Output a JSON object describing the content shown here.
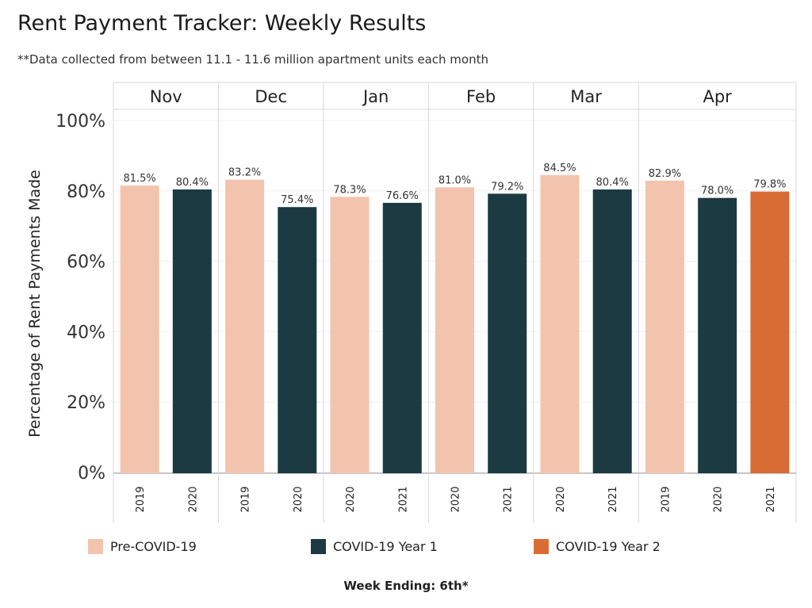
{
  "title": "Rent Payment Tracker: Weekly Results",
  "subtitle": "**Data collected from between 11.1 - 11.6 million apartment units each month",
  "colors": {
    "pre_covid": "#f2c4ae",
    "covid_year1": "#1b3a42",
    "covid_year2": "#d96c35"
  },
  "legend": [
    {
      "label": "Pre-COVID-19",
      "color": "#f2c4ae"
    },
    {
      "label": "COVID-19 Year 1",
      "color": "#1b3a42"
    },
    {
      "label": "COVID-19 Year 2",
      "color": "#d96c35"
    }
  ],
  "chart_data": {
    "type": "bar",
    "title": "Rent Payment Tracker: Weekly Results",
    "subtitle": "**Data collected from between 11.1 - 11.6 million apartment units each month",
    "ylabel": "Percentage of Rent Payments Made",
    "xlabel": "Week Ending: 6th*",
    "ylim": [
      0,
      100
    ],
    "yticks": [
      "0%",
      "20%",
      "40%",
      "60%",
      "80%",
      "100%"
    ],
    "grid": true,
    "legend_position": "bottom",
    "groups": [
      {
        "month": "Nov",
        "bars": [
          {
            "year": "2019",
            "value": 81.5,
            "label": "81.5%",
            "series": "Pre-COVID-19"
          },
          {
            "year": "2020",
            "value": 80.4,
            "label": "80.4%",
            "series": "COVID-19 Year 1"
          }
        ]
      },
      {
        "month": "Dec",
        "bars": [
          {
            "year": "2019",
            "value": 83.2,
            "label": "83.2%",
            "series": "Pre-COVID-19"
          },
          {
            "year": "2020",
            "value": 75.4,
            "label": "75.4%",
            "series": "COVID-19 Year 1"
          }
        ]
      },
      {
        "month": "Jan",
        "bars": [
          {
            "year": "2020",
            "value": 78.3,
            "label": "78.3%",
            "series": "Pre-COVID-19"
          },
          {
            "year": "2021",
            "value": 76.6,
            "label": "76.6%",
            "series": "COVID-19 Year 1"
          }
        ]
      },
      {
        "month": "Feb",
        "bars": [
          {
            "year": "2020",
            "value": 81.0,
            "label": "81.0%",
            "series": "Pre-COVID-19"
          },
          {
            "year": "2021",
            "value": 79.2,
            "label": "79.2%",
            "series": "COVID-19 Year 1"
          }
        ]
      },
      {
        "month": "Mar",
        "bars": [
          {
            "year": "2020",
            "value": 84.5,
            "label": "84.5%",
            "series": "Pre-COVID-19"
          },
          {
            "year": "2021",
            "value": 80.4,
            "label": "80.4%",
            "series": "COVID-19 Year 1"
          }
        ]
      },
      {
        "month": "Apr",
        "bars": [
          {
            "year": "2019",
            "value": 82.9,
            "label": "82.9%",
            "series": "Pre-COVID-19"
          },
          {
            "year": "2020",
            "value": 78.0,
            "label": "78.0%",
            "series": "COVID-19 Year 1"
          },
          {
            "year": "2021",
            "value": 79.8,
            "label": "79.8%",
            "series": "COVID-19 Year 2"
          }
        ]
      }
    ]
  }
}
